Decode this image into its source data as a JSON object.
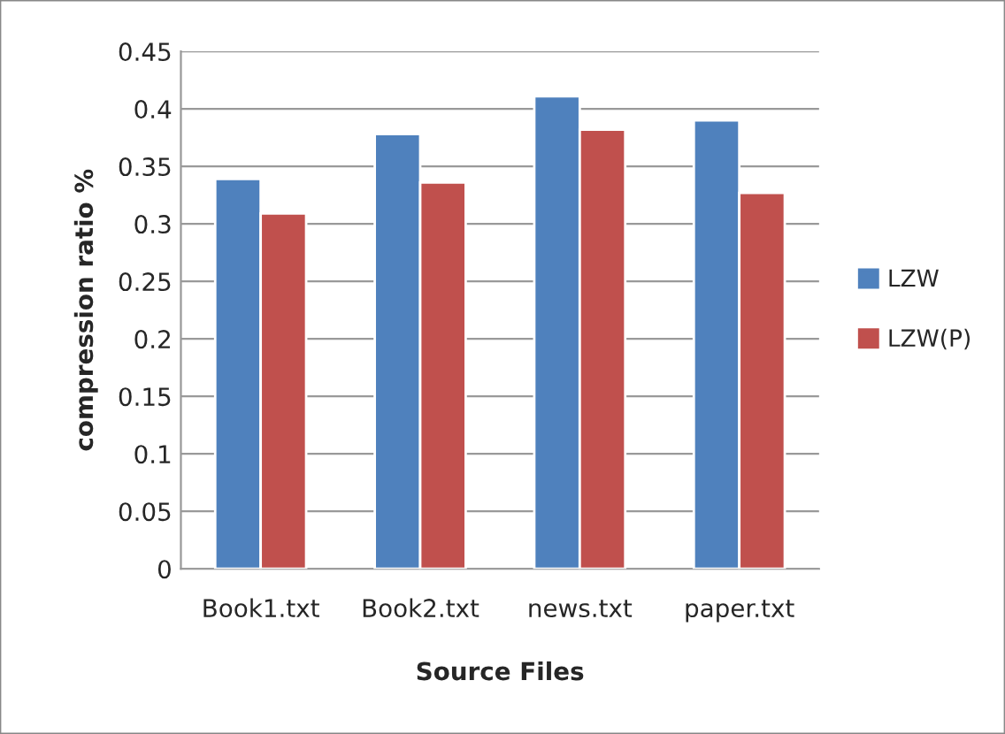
{
  "chart_data": {
    "type": "bar",
    "xlabel": "Source Files",
    "ylabel": "compression ratio %",
    "categories": [
      "Book1.txt",
      "Book2.txt",
      "news.txt",
      "paper.txt"
    ],
    "series": [
      {
        "name": "LZW",
        "color": "#4f81bd",
        "values": [
          0.339,
          0.378,
          0.411,
          0.39
        ]
      },
      {
        "name": "LZW(P)",
        "color": "#c0504d",
        "values": [
          0.309,
          0.336,
          0.382,
          0.327
        ]
      }
    ],
    "ylim": [
      0,
      0.45
    ],
    "yticks": [
      0,
      0.05,
      0.1,
      0.15,
      0.2,
      0.25,
      0.3,
      0.35,
      0.4,
      0.45
    ],
    "grid": "y",
    "legend": "right"
  }
}
